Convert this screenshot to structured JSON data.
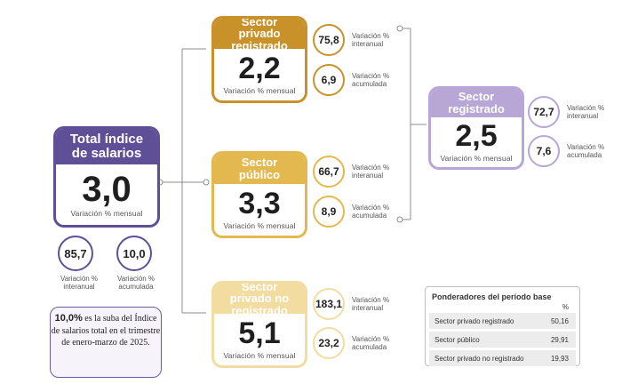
{
  "total": {
    "title": "Total índice de salarios",
    "value": "3,0",
    "sublabel": "Variación % mensual",
    "interanual": "85,7",
    "acumulada": "10,0",
    "label_interanual": "Variación % interanual",
    "label_acumulada": "Variación % acumulada"
  },
  "privado_registrado": {
    "title": "Sector privado registrado",
    "value": "2,2",
    "sublabel": "Variación % mensual",
    "interanual": "75,8",
    "acumulada": "6,9",
    "label_interanual": "Variación % interanual",
    "label_acumulada": "Variación % acumulada"
  },
  "publico": {
    "title": "Sector público",
    "value": "3,3",
    "sublabel": "Variación % mensual",
    "interanual": "66,7",
    "acumulada": "8,9",
    "label_interanual": "Variación % interanual",
    "label_acumulada": "Variación % acumulada"
  },
  "no_registrado": {
    "title": "Sector privado no registrado",
    "value": "5,1",
    "sublabel": "Variación % mensual",
    "interanual": "183,1",
    "acumulada": "23,2",
    "label_interanual": "Variación % interanual",
    "label_acumulada": "Variación % acumulada"
  },
  "registrado": {
    "title": "Sector registrado",
    "value": "2,5",
    "sublabel": "Variación % mensual",
    "interanual": "72,7",
    "acumulada": "7,6",
    "label_interanual": "Variación % interanual",
    "label_acumulada": "Variación % acumulada"
  },
  "note": {
    "highlight": "10,0%",
    "text": "es la suba del Índice de salarios total en el trimestre de enero-marzo de 2025."
  },
  "ponderadores": {
    "title": "Ponderadores del período base",
    "unit": "%",
    "rows": [
      {
        "label": "Sector privado registrado",
        "value": "50,16"
      },
      {
        "label": "Sector público",
        "value": "29,91"
      },
      {
        "label": "Sector privado no registrado",
        "value": "19,93"
      }
    ]
  },
  "colors": {
    "purple": "#5e4f96",
    "purple_light": "#b7a6d6",
    "gold_dark": "#c9912a",
    "gold": "#e3b94f",
    "gold_light": "#f2dca0"
  }
}
